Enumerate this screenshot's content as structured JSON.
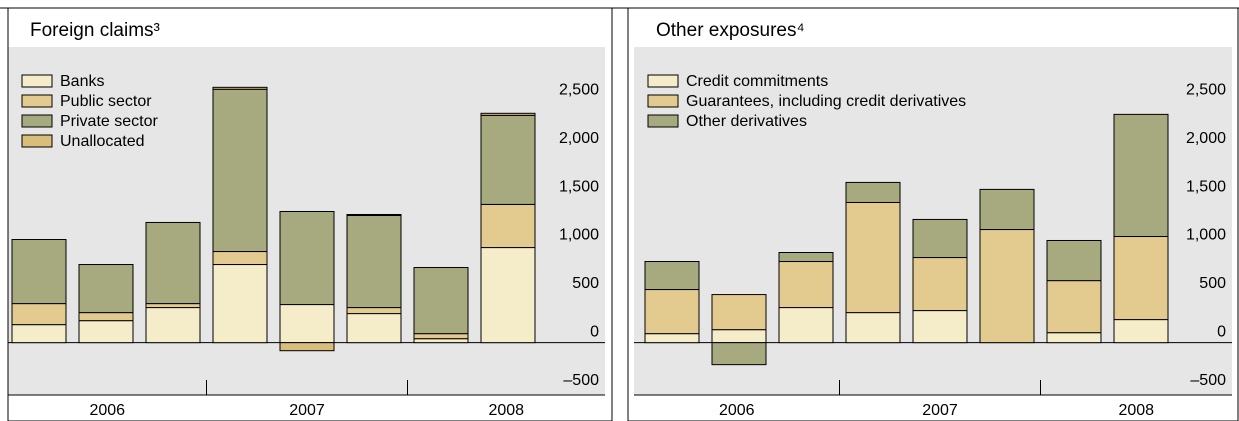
{
  "chart_data": [
    {
      "type": "stacked_bar",
      "title": "Foreign claims³",
      "categories": [
        null,
        null,
        null,
        null,
        null,
        null,
        null,
        null
      ],
      "year_labels": [
        "2006",
        "2007",
        "2008"
      ],
      "series": [
        {
          "name": "Banks",
          "color": "#f5ecca",
          "values": [
            186,
            227,
            362,
            806,
            393,
            300,
            41,
            981
          ]
        },
        {
          "name": "Public sector",
          "color": "#e3cb8f",
          "values": [
            217,
            83,
            41,
            134,
            0,
            62,
            52,
            445
          ]
        },
        {
          "name": "Private sector",
          "color": "#a6aa7e",
          "values": [
            661,
            496,
            837,
            1674,
            960,
            950,
            682,
            919
          ]
        },
        {
          "name": "Unallocated",
          "color": "#d9bd7a",
          "values": [
            0,
            0,
            0,
            20,
            -83,
            10,
            0,
            21
          ]
        }
      ],
      "ylim": [
        -540,
        3050
      ],
      "yticks": [
        {
          "value": -500,
          "label": "–500"
        },
        0,
        500,
        {
          "value": 1000,
          "label": "1,000"
        },
        {
          "value": 1500,
          "label": "1,500"
        },
        {
          "value": 2000,
          "label": "2,000"
        },
        {
          "value": 2500,
          "label": "2,500"
        }
      ],
      "legend": "upper left",
      "grid": false
    },
    {
      "type": "stacked_bar",
      "title": "Other exposures⁴",
      "categories": [
        null,
        null,
        null,
        null,
        null,
        null,
        null,
        null
      ],
      "year_labels": [
        "2006",
        "2007",
        "2008"
      ],
      "series": [
        {
          "name": "Credit commitments",
          "color": "#f5ecca",
          "values": [
            93,
            134,
            362,
            310,
            331,
            0,
            103,
            238
          ]
        },
        {
          "name": "Guarantees, including credit derivatives",
          "color": "#e3cb8f",
          "values": [
            455,
            362,
            475,
            1136,
            547,
            1167,
            537,
            857
          ]
        },
        {
          "name": "Other derivatives",
          "color": "#a6aa7e",
          "values": [
            289,
            -227,
            93,
            207,
            393,
            414,
            414,
            1260
          ]
        }
      ],
      "ylim": [
        -540,
        3050
      ],
      "yticks": [
        {
          "value": -500,
          "label": "–500"
        },
        0,
        500,
        {
          "value": 1000,
          "label": "1,000"
        },
        {
          "value": 1500,
          "label": "1,500"
        },
        {
          "value": 2000,
          "label": "2,000"
        },
        {
          "value": 2500,
          "label": "2,500"
        }
      ],
      "legend": "upper left",
      "grid": false
    }
  ]
}
